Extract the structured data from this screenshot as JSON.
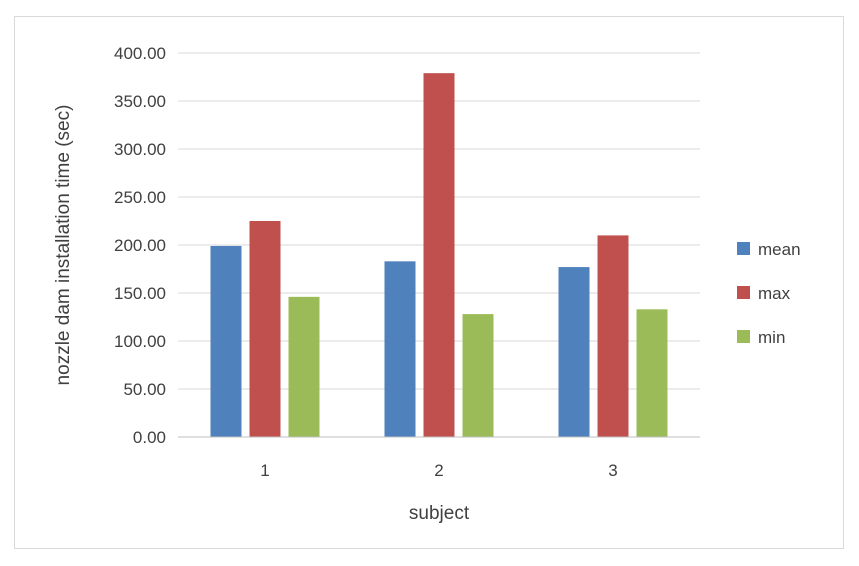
{
  "chart_data": {
    "type": "bar",
    "categories": [
      "1",
      "2",
      "3"
    ],
    "series": [
      {
        "name": "mean",
        "values": [
          199,
          183,
          177
        ],
        "color": "#4f81bd"
      },
      {
        "name": "max",
        "values": [
          225,
          379,
          210
        ],
        "color": "#c0504d"
      },
      {
        "name": "min",
        "values": [
          146,
          128,
          133
        ],
        "color": "#9bbb59"
      }
    ],
    "title": "",
    "xlabel": "subject",
    "ylabel": "nozzle dam installation time (sec)",
    "ylim": [
      0,
      400
    ],
    "yticks": [
      "0.00",
      "50.00",
      "100.00",
      "150.00",
      "200.00",
      "250.00",
      "300.00",
      "350.00",
      "400.00"
    ],
    "grid": true,
    "legend_position": "right"
  }
}
